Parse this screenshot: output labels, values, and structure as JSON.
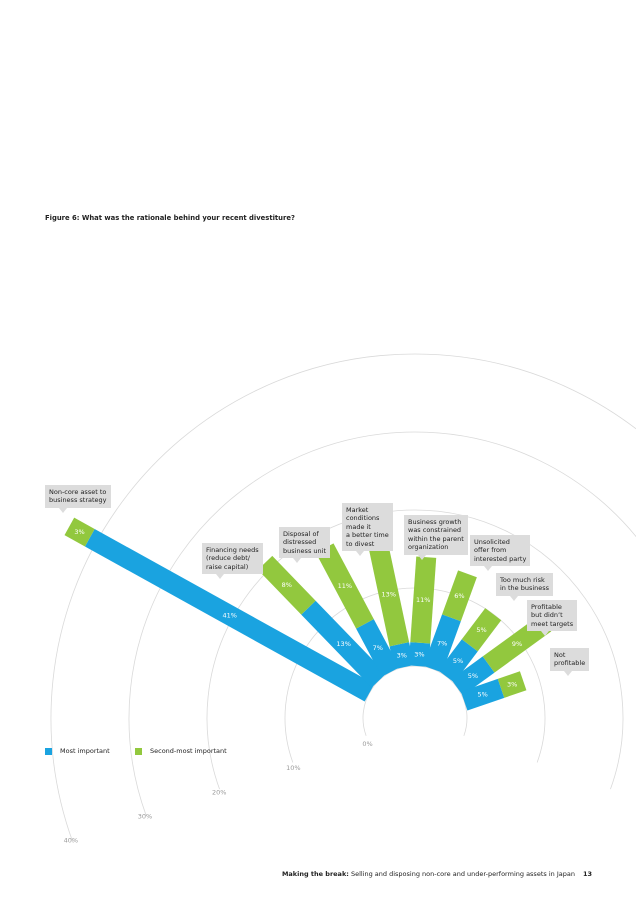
{
  "chart_data": {
    "type": "radial_bar",
    "title": "Figure 6: What was the rationale behind your recent divestiture?",
    "categories": [
      "Non-core asset to\nbusiness strategy",
      "Financing needs\n(reduce debt/\nraise capital)",
      "Disposal of\ndistressed\nbusiness unit",
      "Market\nconditions\nmade it\na better time\nto divest",
      "Business growth\nwas constrained\nwithin the parent\norganization",
      "Unsolicited\noffer from\ninterested party",
      "Too much risk\nin the business",
      "Profitable\nbut didn’t\nmeet targets",
      "Not\nprofitable"
    ],
    "series": [
      {
        "name": "Most important",
        "color": "#1aa3e0",
        "values": [
          41,
          13,
          7,
          3,
          3,
          7,
          5,
          5,
          5
        ],
        "value_labels": [
          "41%",
          "13%",
          "7%",
          "3%",
          "3%",
          "7%",
          "5%",
          "5%",
          "5%"
        ]
      },
      {
        "name": "Second-most important",
        "color": "#92c83e",
        "values": [
          3,
          8,
          11,
          13,
          11,
          6,
          5,
          9,
          3
        ],
        "value_labels": [
          "3%",
          "8%",
          "11%",
          "13%",
          "11%",
          "6%",
          "5%",
          "9%",
          "3%"
        ]
      }
    ],
    "ylim": [
      0,
      40
    ],
    "yticks": [
      {
        "value": 0,
        "label": "0%"
      },
      {
        "value": 10,
        "label": "10%"
      },
      {
        "value": 20,
        "label": "20%"
      },
      {
        "value": 30,
        "label": "30%"
      },
      {
        "value": 40,
        "label": "40%"
      }
    ],
    "grid": true,
    "stacked": true
  },
  "footer": {
    "title": "Making the break:",
    "subtitle": "Selling and disposing non-core and under-performing assets in Japan",
    "page": "13"
  }
}
